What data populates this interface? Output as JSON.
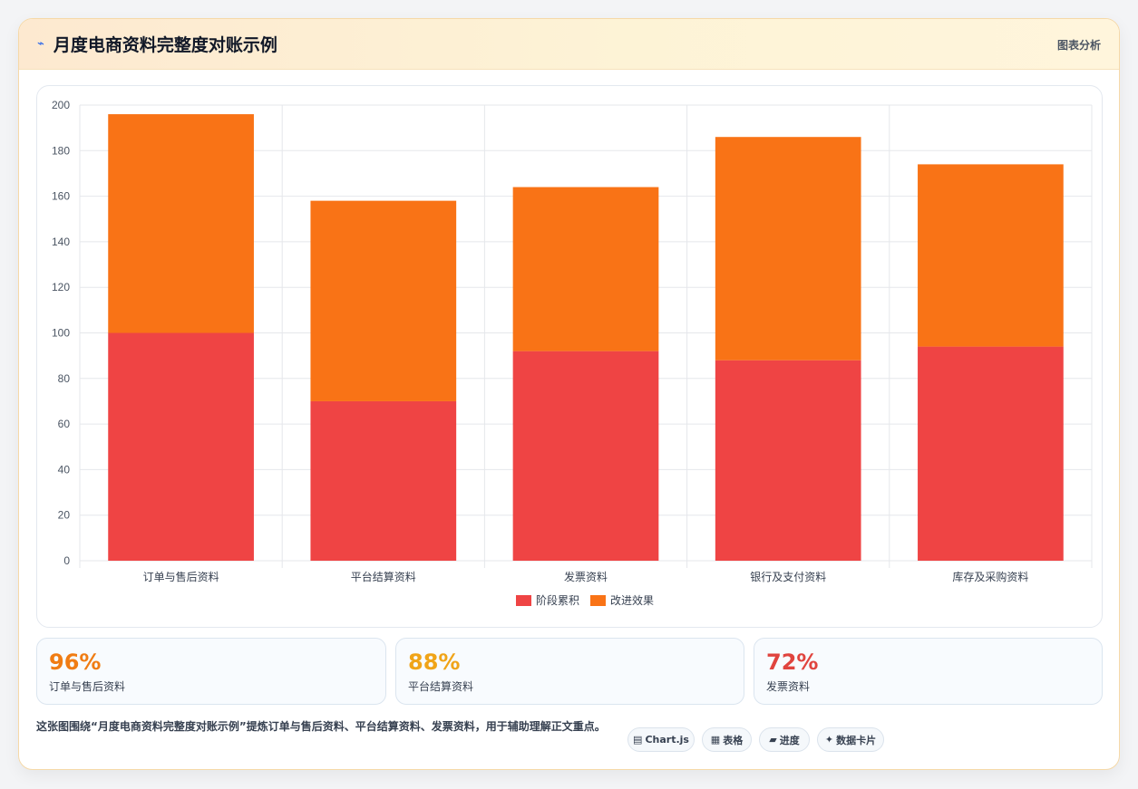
{
  "header": {
    "icon": "⌁",
    "title": "月度电商资料完整度对账示例",
    "right_label": "图表分析"
  },
  "chart_data": {
    "type": "bar",
    "stacked": true,
    "categories": [
      "订单与售后资料",
      "平台结算资料",
      "发票资料",
      "银行及支付资料",
      "库存及采购资料"
    ],
    "series": [
      {
        "name": "阶段累积",
        "color": "#ef4444",
        "values": [
          100,
          70,
          92,
          88,
          94
        ]
      },
      {
        "name": "改进效果",
        "color": "#f97316",
        "values": [
          96,
          88,
          72,
          98,
          80
        ]
      }
    ],
    "ylim": [
      0,
      200
    ],
    "yticks": [
      0,
      20,
      40,
      60,
      80,
      100,
      120,
      140,
      160,
      180,
      200
    ],
    "grid": true,
    "legend_position": "bottom"
  },
  "stats": [
    {
      "value": "96%",
      "label": "订单与售后资料",
      "color": "#f07c13"
    },
    {
      "value": "88%",
      "label": "平台结算资料",
      "color": "#f0a418"
    },
    {
      "value": "72%",
      "label": "发票资料",
      "color": "#e0443e"
    }
  ],
  "footer": {
    "description": "这张图围绕“月度电商资料完整度对账示例”提炼订单与售后资料、平台结算资料、发票资料，用于辅助理解正文重点。"
  },
  "tags": [
    {
      "icon": "chart-icon",
      "glyph": "▤",
      "label": "Chart.js"
    },
    {
      "icon": "table-icon",
      "glyph": "▦",
      "label": "表格"
    },
    {
      "icon": "progress-icon",
      "glyph": "▰",
      "label": "进度"
    },
    {
      "icon": "sparkle-icon",
      "glyph": "✦",
      "label": "数据卡片"
    }
  ]
}
